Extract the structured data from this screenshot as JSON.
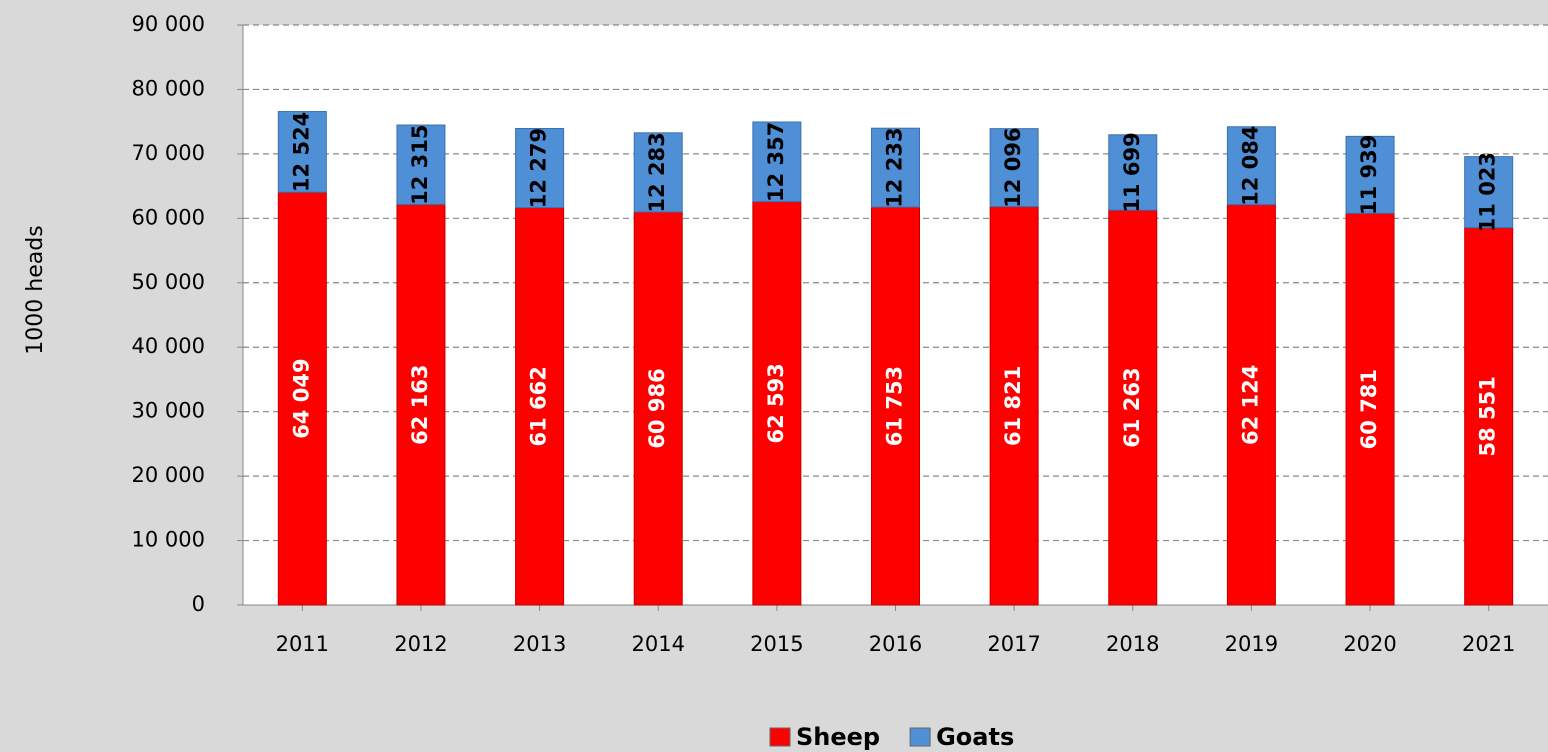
{
  "chart_data": {
    "type": "stacked_bar",
    "y_label": "1000 heads",
    "categories": [
      "2011",
      "2012",
      "2013",
      "2014",
      "2015",
      "2016",
      "2017",
      "2018",
      "2019",
      "2020",
      "2021"
    ],
    "series": [
      {
        "name": "Sheep",
        "color": "#ff0000",
        "values": [
          64049,
          62163,
          61662,
          60986,
          62593,
          61753,
          61821,
          61263,
          62124,
          60781,
          58551
        ],
        "value_labels": [
          "64 049",
          "62 163",
          "61 662",
          "60 986",
          "62 593",
          "61 753",
          "61 821",
          "61 263",
          "62 124",
          "60 781",
          "58 551"
        ]
      },
      {
        "name": "Goats",
        "color": "#4f8fd6",
        "values": [
          12524,
          12315,
          12279,
          12283,
          12357,
          12233,
          12096,
          11699,
          12084,
          11939,
          11023
        ],
        "value_labels": [
          "12 524",
          "12 315",
          "12 279",
          "12 283",
          "12 357",
          "12 233",
          "12 096",
          "11 699",
          "12 084",
          "11 939",
          "11 023"
        ]
      }
    ],
    "ylim": [
      0,
      90000
    ],
    "yticks": [
      0,
      {
        "value": 10000,
        "label": "10 000"
      },
      {
        "value": 20000,
        "label": "20 000"
      },
      {
        "value": 30000,
        "label": "30 000"
      },
      {
        "value": 40000,
        "label": "40 000"
      },
      {
        "value": 50000,
        "label": "50 000"
      },
      {
        "value": 60000,
        "label": "60 000"
      },
      {
        "value": 70000,
        "label": "70 000"
      },
      {
        "value": 80000,
        "label": "80 000"
      },
      {
        "value": 90000,
        "label": "90 000"
      }
    ],
    "grid": true,
    "legend": "bottom"
  }
}
